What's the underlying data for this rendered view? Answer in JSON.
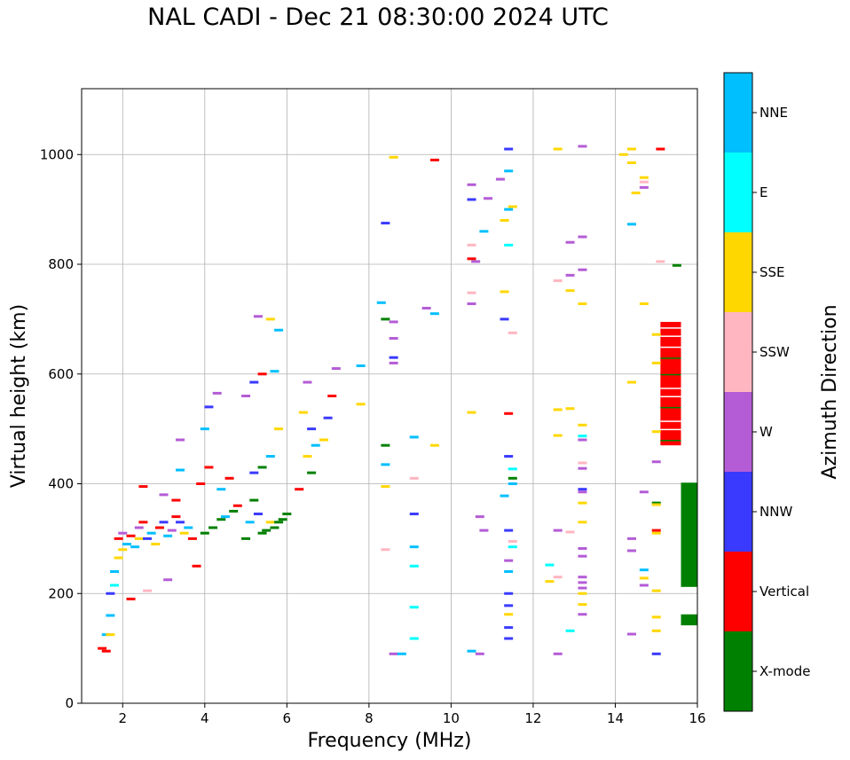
{
  "chart_data": {
    "type": "scatter",
    "title": "NAL CADI - Dec 21 08:30:00 2024 UTC",
    "xlabel": "Frequency (MHz)",
    "ylabel": "Virtual height (km)",
    "xlim": [
      1,
      16
    ],
    "ylim": [
      0,
      1120
    ],
    "xticks": [
      "2",
      "4",
      "6",
      "8",
      "10",
      "12",
      "14",
      "16"
    ],
    "yticks": [
      "0",
      "200",
      "400",
      "600",
      "800",
      "1000"
    ],
    "grid": true,
    "colorbar": {
      "label": "Azimuth Direction",
      "categories": [
        {
          "name": "X-mode",
          "color": "#008000"
        },
        {
          "name": "Vertical",
          "color": "#ff0000"
        },
        {
          "name": "NNW",
          "color": "#3a3aff"
        },
        {
          "name": "W",
          "color": "#b45cd6"
        },
        {
          "name": "SSW",
          "color": "#ffb6c1"
        },
        {
          "name": "SSE",
          "color": "#ffd700"
        },
        {
          "name": "E",
          "color": "#00ffff"
        },
        {
          "name": "NNE",
          "color": "#00bfff"
        }
      ]
    },
    "blocks": [
      {
        "cat": "Vertical",
        "x0": 15.1,
        "x1": 15.6,
        "y0": 470,
        "y1": 695
      },
      {
        "cat": "X-mode",
        "x0": 15.6,
        "x1": 16.0,
        "y0": 212,
        "y1": 402
      },
      {
        "cat": "X-mode",
        "x0": 15.6,
        "x1": 16.0,
        "y0": 142,
        "y1": 162
      }
    ],
    "blips": [
      {
        "cat": "Vertical",
        "x": 1.5,
        "y": 100
      },
      {
        "cat": "NNE",
        "x": 1.6,
        "y": 125
      },
      {
        "cat": "SSE",
        "x": 1.7,
        "y": 125
      },
      {
        "cat": "NNE",
        "x": 1.7,
        "y": 160
      },
      {
        "cat": "Vertical",
        "x": 1.6,
        "y": 95
      },
      {
        "cat": "NNW",
        "x": 1.7,
        "y": 200
      },
      {
        "cat": "E",
        "x": 1.8,
        "y": 215
      },
      {
        "cat": "NNE",
        "x": 1.8,
        "y": 240
      },
      {
        "cat": "SSE",
        "x": 1.9,
        "y": 265
      },
      {
        "cat": "SSE",
        "x": 2.0,
        "y": 280
      },
      {
        "cat": "Vertical",
        "x": 1.9,
        "y": 300
      },
      {
        "cat": "NNE",
        "x": 2.1,
        "y": 290
      },
      {
        "cat": "W",
        "x": 2.0,
        "y": 310
      },
      {
        "cat": "Vertical",
        "x": 2.2,
        "y": 305
      },
      {
        "cat": "NNE",
        "x": 2.3,
        "y": 285
      },
      {
        "cat": "SSE",
        "x": 2.4,
        "y": 300
      },
      {
        "cat": "W",
        "x": 2.4,
        "y": 320
      },
      {
        "cat": "Vertical",
        "x": 2.5,
        "y": 330
      },
      {
        "cat": "NNW",
        "x": 2.6,
        "y": 300
      },
      {
        "cat": "NNE",
        "x": 2.7,
        "y": 310
      },
      {
        "cat": "SSE",
        "x": 2.8,
        "y": 290
      },
      {
        "cat": "Vertical",
        "x": 2.9,
        "y": 320
      },
      {
        "cat": "NNW",
        "x": 3.0,
        "y": 330
      },
      {
        "cat": "NNE",
        "x": 3.1,
        "y": 305
      },
      {
        "cat": "W",
        "x": 3.2,
        "y": 315
      },
      {
        "cat": "Vertical",
        "x": 3.3,
        "y": 340
      },
      {
        "cat": "NNW",
        "x": 3.4,
        "y": 330
      },
      {
        "cat": "SSE",
        "x": 3.5,
        "y": 310
      },
      {
        "cat": "NNE",
        "x": 3.6,
        "y": 320
      },
      {
        "cat": "Vertical",
        "x": 3.7,
        "y": 300
      },
      {
        "cat": "Vertical",
        "x": 3.8,
        "y": 250
      },
      {
        "cat": "W",
        "x": 3.1,
        "y": 225
      },
      {
        "cat": "SSW",
        "x": 2.6,
        "y": 205
      },
      {
        "cat": "Vertical",
        "x": 2.2,
        "y": 190
      },
      {
        "cat": "Vertical",
        "x": 2.5,
        "y": 395
      },
      {
        "cat": "W",
        "x": 3.0,
        "y": 380
      },
      {
        "cat": "Vertical",
        "x": 3.3,
        "y": 370
      },
      {
        "cat": "NNE",
        "x": 3.4,
        "y": 425
      },
      {
        "cat": "W",
        "x": 3.4,
        "y": 480
      },
      {
        "cat": "Vertical",
        "x": 3.9,
        "y": 400
      },
      {
        "cat": "NNE",
        "x": 4.0,
        "y": 500
      },
      {
        "cat": "NNW",
        "x": 4.1,
        "y": 540
      },
      {
        "cat": "W",
        "x": 4.3,
        "y": 565
      },
      {
        "cat": "Vertical",
        "x": 4.1,
        "y": 430
      },
      {
        "cat": "NNE",
        "x": 4.4,
        "y": 390
      },
      {
        "cat": "Vertical",
        "x": 4.6,
        "y": 410
      },
      {
        "cat": "X-mode",
        "x": 4.0,
        "y": 310
      },
      {
        "cat": "X-mode",
        "x": 4.2,
        "y": 320
      },
      {
        "cat": "X-mode",
        "x": 4.4,
        "y": 335
      },
      {
        "cat": "NNE",
        "x": 4.5,
        "y": 340
      },
      {
        "cat": "X-mode",
        "x": 4.7,
        "y": 350
      },
      {
        "cat": "Vertical",
        "x": 4.8,
        "y": 360
      },
      {
        "cat": "X-mode",
        "x": 5.0,
        "y": 300
      },
      {
        "cat": "NNE",
        "x": 5.1,
        "y": 330
      },
      {
        "cat": "X-mode",
        "x": 5.2,
        "y": 370
      },
      {
        "cat": "NNW",
        "x": 5.3,
        "y": 345
      },
      {
        "cat": "X-mode",
        "x": 5.4,
        "y": 310
      },
      {
        "cat": "X-mode",
        "x": 5.5,
        "y": 315
      },
      {
        "cat": "SSE",
        "x": 5.6,
        "y": 330
      },
      {
        "cat": "X-mode",
        "x": 5.7,
        "y": 320
      },
      {
        "cat": "X-mode",
        "x": 5.8,
        "y": 330
      },
      {
        "cat": "X-mode",
        "x": 5.9,
        "y": 335
      },
      {
        "cat": "X-mode",
        "x": 6.0,
        "y": 345
      },
      {
        "cat": "NNW",
        "x": 5.2,
        "y": 420
      },
      {
        "cat": "X-mode",
        "x": 5.4,
        "y": 430
      },
      {
        "cat": "NNE",
        "x": 5.6,
        "y": 450
      },
      {
        "cat": "SSE",
        "x": 5.8,
        "y": 500
      },
      {
        "cat": "W",
        "x": 5.0,
        "y": 560
      },
      {
        "cat": "NNW",
        "x": 5.2,
        "y": 585
      },
      {
        "cat": "Vertical",
        "x": 5.4,
        "y": 600
      },
      {
        "cat": "W",
        "x": 5.3,
        "y": 705
      },
      {
        "cat": "SSE",
        "x": 5.6,
        "y": 700
      },
      {
        "cat": "NNE",
        "x": 5.8,
        "y": 680
      },
      {
        "cat": "NNE",
        "x": 5.7,
        "y": 605
      },
      {
        "cat": "Vertical",
        "x": 6.3,
        "y": 390
      },
      {
        "cat": "X-mode",
        "x": 6.6,
        "y": 420
      },
      {
        "cat": "SSE",
        "x": 6.5,
        "y": 450
      },
      {
        "cat": "NNW",
        "x": 6.6,
        "y": 500
      },
      {
        "cat": "SSE",
        "x": 6.4,
        "y": 530
      },
      {
        "cat": "W",
        "x": 6.5,
        "y": 585
      },
      {
        "cat": "NNE",
        "x": 6.7,
        "y": 470
      },
      {
        "cat": "SSE",
        "x": 6.9,
        "y": 480
      },
      {
        "cat": "NNW",
        "x": 7.0,
        "y": 520
      },
      {
        "cat": "Vertical",
        "x": 7.1,
        "y": 560
      },
      {
        "cat": "W",
        "x": 7.2,
        "y": 610
      },
      {
        "cat": "NNE",
        "x": 7.8,
        "y": 615
      },
      {
        "cat": "SSE",
        "x": 7.8,
        "y": 545
      },
      {
        "cat": "NNE",
        "x": 8.3,
        "y": 730
      },
      {
        "cat": "X-mode",
        "x": 8.4,
        "y": 700
      },
      {
        "cat": "W",
        "x": 8.6,
        "y": 695
      },
      {
        "cat": "W",
        "x": 8.6,
        "y": 665
      },
      {
        "cat": "NNW",
        "x": 8.6,
        "y": 630
      },
      {
        "cat": "W",
        "x": 8.6,
        "y": 620
      },
      {
        "cat": "X-mode",
        "x": 8.4,
        "y": 470
      },
      {
        "cat": "NNE",
        "x": 8.4,
        "y": 435
      },
      {
        "cat": "SSE",
        "x": 8.4,
        "y": 395
      },
      {
        "cat": "NNW",
        "x": 8.4,
        "y": 875
      },
      {
        "cat": "SSE",
        "x": 8.6,
        "y": 995
      },
      {
        "cat": "SSW",
        "x": 8.4,
        "y": 280
      },
      {
        "cat": "W",
        "x": 8.6,
        "y": 90
      },
      {
        "cat": "NNE",
        "x": 8.8,
        "y": 90
      },
      {
        "cat": "NNE",
        "x": 9.1,
        "y": 485
      },
      {
        "cat": "SSW",
        "x": 9.1,
        "y": 410
      },
      {
        "cat": "NNW",
        "x": 9.1,
        "y": 345
      },
      {
        "cat": "NNE",
        "x": 9.1,
        "y": 285
      },
      {
        "cat": "E",
        "x": 9.1,
        "y": 250
      },
      {
        "cat": "E",
        "x": 9.1,
        "y": 175
      },
      {
        "cat": "E",
        "x": 9.1,
        "y": 118
      },
      {
        "cat": "W",
        "x": 9.4,
        "y": 720
      },
      {
        "cat": "NNE",
        "x": 9.6,
        "y": 710
      },
      {
        "cat": "SSE",
        "x": 9.6,
        "y": 470
      },
      {
        "cat": "Vertical",
        "x": 9.6,
        "y": 990
      },
      {
        "cat": "W",
        "x": 10.5,
        "y": 945
      },
      {
        "cat": "NNW",
        "x": 10.5,
        "y": 918
      },
      {
        "cat": "NNE",
        "x": 10.8,
        "y": 860
      },
      {
        "cat": "SSW",
        "x": 10.5,
        "y": 835
      },
      {
        "cat": "Vertical",
        "x": 10.5,
        "y": 810
      },
      {
        "cat": "W",
        "x": 10.6,
        "y": 805
      },
      {
        "cat": "SSW",
        "x": 10.5,
        "y": 748
      },
      {
        "cat": "W",
        "x": 10.5,
        "y": 728
      },
      {
        "cat": "SSE",
        "x": 10.5,
        "y": 530
      },
      {
        "cat": "W",
        "x": 10.7,
        "y": 340
      },
      {
        "cat": "W",
        "x": 10.8,
        "y": 315
      },
      {
        "cat": "NNE",
        "x": 10.5,
        "y": 95
      },
      {
        "cat": "W",
        "x": 10.7,
        "y": 90
      },
      {
        "cat": "W",
        "x": 10.9,
        "y": 920
      },
      {
        "cat": "W",
        "x": 11.2,
        "y": 955
      },
      {
        "cat": "SSE",
        "x": 11.3,
        "y": 880
      },
      {
        "cat": "NNW",
        "x": 11.4,
        "y": 1010
      },
      {
        "cat": "NNE",
        "x": 11.4,
        "y": 970
      },
      {
        "cat": "NNE",
        "x": 11.4,
        "y": 900
      },
      {
        "cat": "SSE",
        "x": 11.5,
        "y": 905
      },
      {
        "cat": "E",
        "x": 11.4,
        "y": 835
      },
      {
        "cat": "SSE",
        "x": 11.3,
        "y": 750
      },
      {
        "cat": "NNW",
        "x": 11.3,
        "y": 700
      },
      {
        "cat": "SSW",
        "x": 11.5,
        "y": 675
      },
      {
        "cat": "Vertical",
        "x": 11.4,
        "y": 528
      },
      {
        "cat": "NNW",
        "x": 11.4,
        "y": 450
      },
      {
        "cat": "E",
        "x": 11.5,
        "y": 427
      },
      {
        "cat": "X-mode",
        "x": 11.5,
        "y": 410
      },
      {
        "cat": "NNE",
        "x": 11.5,
        "y": 400
      },
      {
        "cat": "NNE",
        "x": 11.3,
        "y": 378
      },
      {
        "cat": "NNW",
        "x": 11.4,
        "y": 315
      },
      {
        "cat": "SSW",
        "x": 11.5,
        "y": 295
      },
      {
        "cat": "E",
        "x": 11.5,
        "y": 285
      },
      {
        "cat": "W",
        "x": 11.4,
        "y": 260
      },
      {
        "cat": "NNE",
        "x": 11.4,
        "y": 240
      },
      {
        "cat": "NNW",
        "x": 11.4,
        "y": 200
      },
      {
        "cat": "NNW",
        "x": 11.4,
        "y": 178
      },
      {
        "cat": "SSE",
        "x": 11.4,
        "y": 162
      },
      {
        "cat": "NNW",
        "x": 11.4,
        "y": 138
      },
      {
        "cat": "NNW",
        "x": 11.4,
        "y": 118
      },
      {
        "cat": "SSE",
        "x": 12.6,
        "y": 1010
      },
      {
        "cat": "W",
        "x": 13.2,
        "y": 1015
      },
      {
        "cat": "W",
        "x": 13.2,
        "y": 850
      },
      {
        "cat": "W",
        "x": 12.9,
        "y": 840
      },
      {
        "cat": "W",
        "x": 13.2,
        "y": 790
      },
      {
        "cat": "W",
        "x": 12.9,
        "y": 780
      },
      {
        "cat": "SSW",
        "x": 12.6,
        "y": 770
      },
      {
        "cat": "SSE",
        "x": 12.9,
        "y": 752
      },
      {
        "cat": "SSE",
        "x": 13.2,
        "y": 728
      },
      {
        "cat": "SSE",
        "x": 12.6,
        "y": 535
      },
      {
        "cat": "SSE",
        "x": 12.9,
        "y": 537
      },
      {
        "cat": "SSE",
        "x": 13.2,
        "y": 507
      },
      {
        "cat": "SSE",
        "x": 12.6,
        "y": 488
      },
      {
        "cat": "E",
        "x": 13.2,
        "y": 487
      },
      {
        "cat": "W",
        "x": 13.2,
        "y": 480
      },
      {
        "cat": "SSW",
        "x": 13.2,
        "y": 438
      },
      {
        "cat": "W",
        "x": 13.2,
        "y": 428
      },
      {
        "cat": "NNW",
        "x": 13.2,
        "y": 390
      },
      {
        "cat": "W",
        "x": 13.2,
        "y": 385
      },
      {
        "cat": "SSE",
        "x": 13.2,
        "y": 365
      },
      {
        "cat": "SSE",
        "x": 13.2,
        "y": 330
      },
      {
        "cat": "W",
        "x": 12.6,
        "y": 315
      },
      {
        "cat": "SSW",
        "x": 12.9,
        "y": 312
      },
      {
        "cat": "W",
        "x": 13.2,
        "y": 282
      },
      {
        "cat": "W",
        "x": 13.2,
        "y": 268
      },
      {
        "cat": "E",
        "x": 12.4,
        "y": 252
      },
      {
        "cat": "SSW",
        "x": 12.6,
        "y": 230
      },
      {
        "cat": "SSE",
        "x": 12.4,
        "y": 222
      },
      {
        "cat": "W",
        "x": 13.2,
        "y": 230
      },
      {
        "cat": "W",
        "x": 13.2,
        "y": 220
      },
      {
        "cat": "W",
        "x": 13.2,
        "y": 210
      },
      {
        "cat": "SSE",
        "x": 13.2,
        "y": 200
      },
      {
        "cat": "SSE",
        "x": 13.2,
        "y": 180
      },
      {
        "cat": "W",
        "x": 13.2,
        "y": 162
      },
      {
        "cat": "E",
        "x": 12.9,
        "y": 132
      },
      {
        "cat": "W",
        "x": 12.6,
        "y": 90
      },
      {
        "cat": "SSE",
        "x": 14.2,
        "y": 1000
      },
      {
        "cat": "SSE",
        "x": 14.4,
        "y": 1010
      },
      {
        "cat": "SSE",
        "x": 14.4,
        "y": 985
      },
      {
        "cat": "SSE",
        "x": 14.7,
        "y": 958
      },
      {
        "cat": "SSW",
        "x": 14.7,
        "y": 950
      },
      {
        "cat": "W",
        "x": 14.7,
        "y": 940
      },
      {
        "cat": "SSE",
        "x": 14.5,
        "y": 930
      },
      {
        "cat": "NNE",
        "x": 14.4,
        "y": 873
      },
      {
        "cat": "SSW",
        "x": 15.1,
        "y": 805
      },
      {
        "cat": "SSE",
        "x": 14.7,
        "y": 728
      },
      {
        "cat": "SSE",
        "x": 15.0,
        "y": 672
      },
      {
        "cat": "SSE",
        "x": 15.0,
        "y": 620
      },
      {
        "cat": "SSE",
        "x": 14.4,
        "y": 585
      },
      {
        "cat": "SSE",
        "x": 15.0,
        "y": 495
      },
      {
        "cat": "W",
        "x": 15.0,
        "y": 440
      },
      {
        "cat": "W",
        "x": 14.7,
        "y": 385
      },
      {
        "cat": "X-mode",
        "x": 15.0,
        "y": 365
      },
      {
        "cat": "SSE",
        "x": 15.0,
        "y": 362
      },
      {
        "cat": "Vertical",
        "x": 15.0,
        "y": 315
      },
      {
        "cat": "SSE",
        "x": 15.0,
        "y": 310
      },
      {
        "cat": "W",
        "x": 14.4,
        "y": 300
      },
      {
        "cat": "W",
        "x": 14.4,
        "y": 278
      },
      {
        "cat": "NNE",
        "x": 14.7,
        "y": 243
      },
      {
        "cat": "SSE",
        "x": 14.7,
        "y": 228
      },
      {
        "cat": "W",
        "x": 14.7,
        "y": 215
      },
      {
        "cat": "SSE",
        "x": 15.0,
        "y": 205
      },
      {
        "cat": "SSE",
        "x": 15.0,
        "y": 157
      },
      {
        "cat": "SSE",
        "x": 15.0,
        "y": 132
      },
      {
        "cat": "W",
        "x": 14.4,
        "y": 126
      },
      {
        "cat": "NNW",
        "x": 15.0,
        "y": 90
      },
      {
        "cat": "Vertical",
        "x": 15.1,
        "y": 1010
      },
      {
        "cat": "X-mode",
        "x": 15.5,
        "y": 798
      }
    ]
  }
}
